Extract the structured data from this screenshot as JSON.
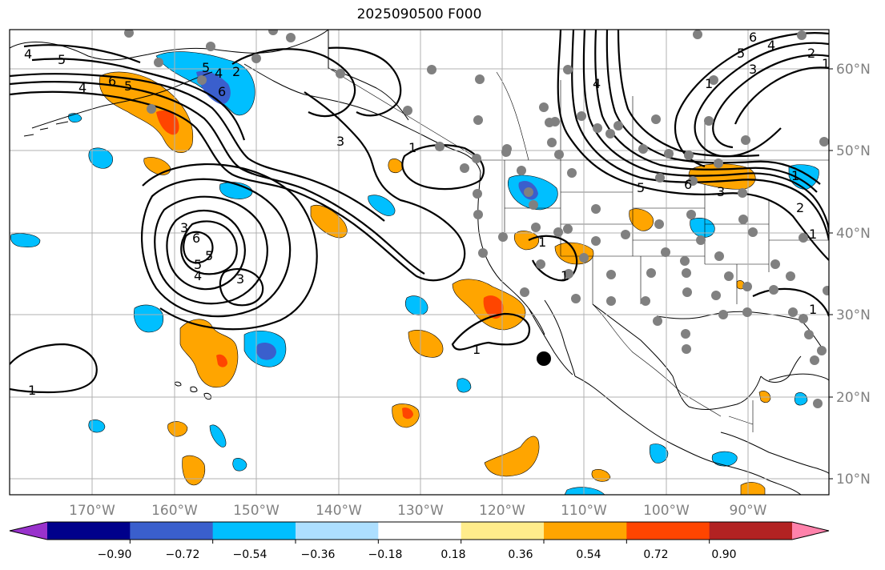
{
  "title": "2025090500 F000",
  "map": {
    "lat_ticks": [
      "10°N",
      "20°N",
      "30°N",
      "40°N",
      "50°N",
      "60°N"
    ],
    "lon_ticks": [
      "170°W",
      "160°W",
      "150°W",
      "140°W",
      "130°W",
      "120°W",
      "110°W",
      "100°W",
      "90°W"
    ],
    "contour_labels": [
      "4",
      "5",
      "6",
      "5",
      "4",
      "5",
      "6",
      "5",
      "4",
      "3",
      "6",
      "3",
      "4",
      "5",
      "3",
      "2",
      "1",
      "1",
      "1",
      "1",
      "1",
      "1",
      "1",
      "1",
      "1",
      "2",
      "3",
      "4",
      "5",
      "6",
      "6",
      "5",
      "4",
      "3",
      "2",
      "1",
      "1",
      "2",
      "4",
      "5",
      "6",
      "3"
    ]
  },
  "colorbar": {
    "tick_labels": [
      "−0.90",
      "−0.72",
      "−0.54",
      "−0.36",
      "−0.18",
      "0.18",
      "0.36",
      "0.54",
      "0.72",
      "0.90"
    ],
    "colors": [
      "#9932CC",
      "#00008B",
      "#3A5FCD",
      "#00BFFF",
      "#ADDFFF",
      "#FFFFFF",
      "#FFEC8B",
      "#FFA500",
      "#FF4500",
      "#B22222",
      "#FF82AB"
    ]
  },
  "colors": {
    "grid": "#b0b0b0",
    "dots": "#808080",
    "contour": "#000000"
  }
}
